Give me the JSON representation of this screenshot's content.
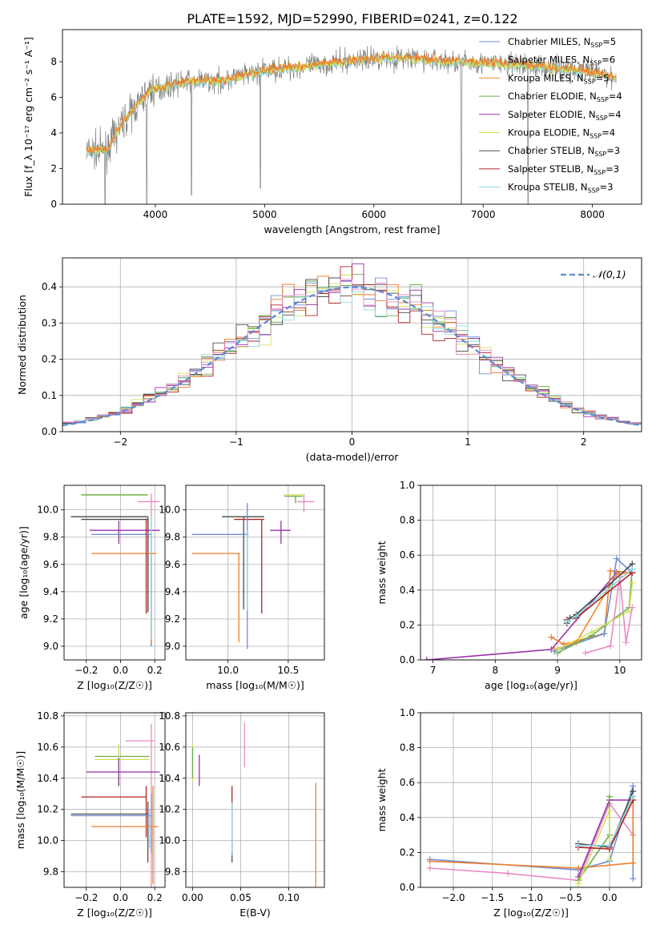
{
  "title": "PLATE=1592, MJD=52990, FIBERID=0241, z=0.122",
  "model_colors": [
    "#6f8fd6",
    "#ee7f2d",
    "#f08b22",
    "#6aad4e",
    "#9b2fa8",
    "#cfe35a",
    "#4a4a4a",
    "#b22222",
    "#8ed6e0"
  ],
  "chart_data": [
    {
      "id": "spectrum",
      "type": "line",
      "xlabel": "wavelength [Angstrom, rest frame]",
      "ylabel": "Flux [f_λ 10⁻¹⁷ erg cm⁻² s⁻¹ A⁻¹]",
      "xlim": [
        3150,
        8450
      ],
      "ylim": [
        0,
        9.8
      ],
      "xticks": [
        4000,
        5000,
        6000,
        7000,
        8000
      ],
      "yticks": [
        0,
        2,
        4,
        6,
        8
      ],
      "legend_position": "right",
      "legend": [
        {
          "label": "Chabrier MILES, N",
          "sub": "SSP",
          "suffix": "=5",
          "color": "#6f8fd6"
        },
        {
          "label": "Salpeter MILES, N",
          "sub": "SSP",
          "suffix": "=6",
          "color": "#ee7f2d"
        },
        {
          "label": "Kroupa MILES, N",
          "sub": "SSP",
          "suffix": "=5",
          "color": "#f08b22"
        },
        {
          "label": "Chabrier ELODIE, N",
          "sub": "SSP",
          "suffix": "=4",
          "color": "#6aad4e"
        },
        {
          "label": "Salpeter ELODIE, N",
          "sub": "SSP",
          "suffix": "=4",
          "color": "#9b2fa8"
        },
        {
          "label": "Kroupa ELODIE, N",
          "sub": "SSP",
          "suffix": "=4",
          "color": "#cfe35a"
        },
        {
          "label": "Chabrier STELIB, N",
          "sub": "SSP",
          "suffix": "=3",
          "color": "#4a4a4a"
        },
        {
          "label": "Salpeter STELIB, N",
          "sub": "SSP",
          "suffix": "=3",
          "color": "#b22222"
        },
        {
          "label": "Kroupa STELIB, N",
          "sub": "SSP",
          "suffix": "=3",
          "color": "#8ed6e0"
        }
      ],
      "continuum": [
        [
          3370,
          3.0
        ],
        [
          3550,
          3.0
        ],
        [
          3700,
          4.6
        ],
        [
          3950,
          6.4
        ],
        [
          4300,
          6.9
        ],
        [
          4600,
          6.9
        ],
        [
          5000,
          7.5
        ],
        [
          5300,
          7.7
        ],
        [
          5600,
          7.9
        ],
        [
          6000,
          8.2
        ],
        [
          6300,
          8.2
        ],
        [
          6700,
          8.0
        ],
        [
          7100,
          7.9
        ],
        [
          7400,
          7.8
        ],
        [
          7700,
          7.6
        ],
        [
          8000,
          7.4
        ],
        [
          8200,
          7.1
        ]
      ],
      "absorption_lines": [
        [
          3540,
          0
        ],
        [
          3920,
          0
        ],
        [
          4330,
          0.5
        ],
        [
          4960,
          0.9
        ],
        [
          6800,
          0
        ],
        [
          7410,
          0
        ]
      ]
    },
    {
      "id": "residual-histogram",
      "type": "bar",
      "xlabel": "(data-model)/error",
      "ylabel": "Normed distribution",
      "xlim": [
        -2.5,
        2.5
      ],
      "ylim": [
        0,
        0.48
      ],
      "xticks": [
        -2,
        -1,
        0,
        1,
        2
      ],
      "yticks": [
        0.0,
        0.1,
        0.2,
        0.3,
        0.4
      ],
      "legend": "𝒩(0,1)",
      "legend_position": "top-right",
      "gaussian": {
        "mu": 0,
        "sigma": 1
      }
    },
    {
      "id": "age-vs-metallicity",
      "type": "scatter",
      "xlabel": "Z [log₁₀(Z/Z☉)]",
      "ylabel": "age  [log₁₀(age/yr)]",
      "xlim": [
        -0.33,
        0.26
      ],
      "ylim": [
        8.9,
        10.18
      ],
      "xticks": [
        -0.2,
        0.0,
        0.2
      ],
      "yticks": [
        9.0,
        9.2,
        9.4,
        9.6,
        9.8,
        10.0
      ]
    },
    {
      "id": "age-vs-mass",
      "type": "scatter",
      "xlabel": "mass [log₁₀(M/M☉)]",
      "ylabel": "",
      "xlim": [
        9.65,
        10.8
      ],
      "ylim": [
        8.9,
        10.18
      ],
      "xticks": [
        10.0,
        10.5
      ],
      "yticks": [
        9.0,
        9.2,
        9.4,
        9.6,
        9.8,
        10.0
      ]
    },
    {
      "id": "mass-weight-vs-age",
      "type": "line",
      "xlabel": "age  [log₁₀(age/yr)]",
      "ylabel": "mass weight",
      "xlim": [
        6.8,
        10.35
      ],
      "ylim": [
        0,
        1.0
      ],
      "xticks": [
        7,
        8,
        9,
        10
      ],
      "yticks": [
        0.0,
        0.2,
        0.4,
        0.6,
        0.8,
        1.0
      ]
    },
    {
      "id": "mass-vs-metallicity",
      "type": "scatter",
      "xlabel": "Z [log₁₀(Z/Z☉)]",
      "ylabel": "mass [log₁₀(M/M☉)]",
      "xlim": [
        -0.33,
        0.26
      ],
      "ylim": [
        9.7,
        10.82
      ],
      "xticks": [
        -0.2,
        0.0,
        0.2
      ],
      "yticks": [
        9.8,
        10.0,
        10.2,
        10.4,
        10.6,
        10.8
      ]
    },
    {
      "id": "mass-vs-ebv",
      "type": "scatter",
      "xlabel": "E(B-V)",
      "ylabel": "",
      "xlim": [
        -0.007,
        0.137
      ],
      "ylim": [
        9.7,
        10.82
      ],
      "xticks": [
        0.0,
        0.05,
        0.1
      ],
      "yticks": [
        9.8,
        10.0,
        10.2,
        10.4,
        10.6,
        10.8
      ]
    },
    {
      "id": "mass-weight-vs-metallicity",
      "type": "line",
      "xlabel": "Z [log₁₀(Z/Z☉)]",
      "ylabel": "mass weight",
      "xlim": [
        -2.42,
        0.41
      ],
      "ylim": [
        0,
        1.0
      ],
      "xticks": [
        -2.0,
        -1.5,
        -1.0,
        -0.5,
        0.0
      ],
      "yticks": [
        0.0,
        0.2,
        0.4,
        0.6,
        0.8,
        1.0
      ]
    }
  ],
  "crosses_age_z": [
    {
      "color": "#cfe35a",
      "x": 0.16,
      "y": 10.11,
      "xe": [
        -0.23,
        0.16
      ],
      "ye": [
        10.11,
        10.11
      ]
    },
    {
      "color": "#6aad4e",
      "x": 0.16,
      "y": 10.11,
      "xe": [
        -0.23,
        0.16
      ],
      "ye": [
        10.11,
        10.11
      ]
    },
    {
      "color": "#e88ac6",
      "x": 0.18,
      "y": 10.06,
      "xe": [
        0.1,
        0.23
      ],
      "ye": [
        9.0,
        10.12
      ]
    },
    {
      "color": "#4a4a4a",
      "x": 0.16,
      "y": 9.95,
      "xe": [
        -0.29,
        0.16
      ],
      "ye": [
        9.25,
        9.95
      ]
    },
    {
      "color": "#4a4a4a",
      "x": 0.16,
      "y": 9.93,
      "xe": [
        -0.23,
        0.16
      ],
      "ye": [
        9.25,
        9.93
      ]
    },
    {
      "color": "#9b2fa8",
      "x": -0.01,
      "y": 9.85,
      "xe": [
        -0.18,
        0.23
      ],
      "ye": [
        9.75,
        9.92
      ]
    },
    {
      "color": "#6f8fd6",
      "x": 0.18,
      "y": 9.82,
      "xe": [
        -0.17,
        0.18
      ],
      "ye": [
        9.0,
        9.82
      ]
    },
    {
      "color": "#ee7f2d",
      "x": 0.18,
      "y": 9.68,
      "xe": [
        -0.17,
        0.21
      ],
      "ye": [
        9.02,
        9.68
      ]
    },
    {
      "color": "#b22222",
      "x": 0.15,
      "y": 9.93,
      "xe": [
        0.15,
        0.15
      ],
      "ye": [
        9.24,
        9.93
      ]
    },
    {
      "color": "#8ed6e0",
      "x": 0.18,
      "y": 9.96,
      "xe": [
        0.18,
        0.18
      ],
      "ye": [
        9.05,
        9.96
      ]
    }
  ],
  "crosses_age_mass": [
    {
      "color": "#cfe35a",
      "x": 10.56,
      "y": 10.11,
      "xe": [
        10.46,
        10.62
      ],
      "ye": [
        10.05,
        10.11
      ]
    },
    {
      "color": "#6aad4e",
      "x": 10.56,
      "y": 10.1,
      "xe": [
        10.47,
        10.62
      ],
      "ye": [
        10.05,
        10.1
      ]
    },
    {
      "color": "#e88ac6",
      "x": 10.63,
      "y": 10.06,
      "xe": [
        10.57,
        10.72
      ],
      "ye": [
        9.98,
        10.12
      ]
    },
    {
      "color": "#4a4a4a",
      "x": 10.13,
      "y": 9.95,
      "xe": [
        9.95,
        10.3
      ],
      "ye": [
        9.27,
        9.95
      ]
    },
    {
      "color": "#b22222",
      "x": 10.28,
      "y": 9.93,
      "xe": [
        10.05,
        10.3
      ],
      "ye": [
        9.24,
        9.93
      ]
    },
    {
      "color": "#9b2fa8",
      "x": 10.44,
      "y": 9.85,
      "xe": [
        10.35,
        10.52
      ],
      "ye": [
        9.75,
        9.92
      ]
    },
    {
      "color": "#6f8fd6",
      "x": 10.16,
      "y": 9.82,
      "xe": [
        9.7,
        10.17
      ],
      "ye": [
        8.98,
        10.05
      ]
    },
    {
      "color": "#ee7f2d",
      "x": 10.09,
      "y": 9.68,
      "xe": [
        9.7,
        10.1
      ],
      "ye": [
        9.03,
        9.68
      ]
    },
    {
      "color": "#8ed6e0",
      "x": 10.16,
      "y": 9.85,
      "xe": [
        10.16,
        10.16
      ],
      "ye": [
        9.26,
        9.85
      ]
    }
  ],
  "crosses_mass_z": [
    {
      "color": "#e88ac6",
      "x": 0.18,
      "y": 10.64,
      "xe": [
        0.03,
        0.2
      ],
      "ye": [
        9.7,
        10.75
      ]
    },
    {
      "color": "#6aad4e",
      "x": -0.01,
      "y": 10.54,
      "xe": [
        -0.15,
        0.17
      ],
      "ye": [
        10.35,
        10.6
      ]
    },
    {
      "color": "#cfe35a",
      "x": -0.01,
      "y": 10.52,
      "xe": [
        -0.15,
        0.17
      ],
      "ye": [
        10.35,
        10.62
      ]
    },
    {
      "color": "#9b2fa8",
      "x": -0.01,
      "y": 10.44,
      "xe": [
        -0.2,
        0.23
      ],
      "ye": [
        10.35,
        10.53
      ]
    },
    {
      "color": "#b22222",
      "x": 0.15,
      "y": 10.28,
      "xe": [
        -0.23,
        0.15
      ],
      "ye": [
        10.02,
        10.35
      ]
    },
    {
      "color": "#4a4a4a",
      "x": 0.16,
      "y": 10.17,
      "xe": [
        -0.29,
        0.16
      ],
      "ye": [
        9.86,
        10.25
      ]
    },
    {
      "color": "#6f8fd6",
      "x": 0.18,
      "y": 10.16,
      "xe": [
        -0.29,
        0.18
      ],
      "ye": [
        9.92,
        10.3
      ]
    },
    {
      "color": "#ee7f2d",
      "x": 0.19,
      "y": 10.09,
      "xe": [
        -0.17,
        0.22
      ],
      "ye": [
        9.72,
        10.35
      ]
    },
    {
      "color": "#8ed6e0",
      "x": 0.17,
      "y": 10.16,
      "xe": [
        0.17,
        0.17
      ],
      "ye": [
        9.95,
        10.2
      ]
    }
  ],
  "crosses_mass_ebv": [
    {
      "color": "#cfe35a",
      "x": 0.0,
      "y": 10.52,
      "ye": [
        10.38,
        10.62
      ]
    },
    {
      "color": "#6aad4e",
      "x": 0.0,
      "y": 10.52,
      "ye": [
        10.4,
        10.6
      ]
    },
    {
      "color": "#9b2fa8",
      "x": 0.007,
      "y": 10.44,
      "ye": [
        10.35,
        10.55
      ]
    },
    {
      "color": "#e88ac6",
      "x": 0.054,
      "y": 10.64,
      "ye": [
        10.47,
        10.76
      ]
    },
    {
      "color": "#b22222",
      "x": 0.041,
      "y": 10.28,
      "ye": [
        10.2,
        10.35
      ]
    },
    {
      "color": "#4a4a4a",
      "x": 0.041,
      "y": 10.06,
      "ye": [
        9.86,
        10.2
      ]
    },
    {
      "color": "#6f8fd6",
      "x": 0.041,
      "y": 10.16,
      "ye": [
        9.9,
        10.25
      ]
    },
    {
      "color": "#8ed6e0",
      "x": 0.041,
      "y": 10.16,
      "ye": [
        9.92,
        10.24
      ]
    },
    {
      "color": "#ee7f2d",
      "x": 0.128,
      "y": 10.09,
      "ye": [
        9.7,
        10.37
      ]
    }
  ],
  "mw_age_lines": [
    {
      "color": "#9b2fa8",
      "pts": [
        [
          6.9,
          0.0
        ],
        [
          8.9,
          0.06
        ],
        [
          9.95,
          0.5
        ]
      ]
    },
    {
      "color": "#ee7f2d",
      "pts": [
        [
          8.9,
          0.13
        ],
        [
          9.1,
          0.09
        ],
        [
          9.75,
          0.15
        ],
        [
          9.85,
          0.51
        ],
        [
          10.2,
          0.5
        ]
      ]
    },
    {
      "color": "#f08b22",
      "pts": [
        [
          8.95,
          0.06
        ],
        [
          9.3,
          0.1
        ],
        [
          9.95,
          0.49
        ],
        [
          10.2,
          0.5
        ]
      ]
    },
    {
      "color": "#6f8fd6",
      "pts": [
        [
          8.95,
          0.05
        ],
        [
          9.75,
          0.15
        ],
        [
          9.95,
          0.58
        ],
        [
          10.2,
          0.5
        ]
      ]
    },
    {
      "color": "#6aad4e",
      "pts": [
        [
          9.0,
          0.04
        ],
        [
          9.55,
          0.14
        ],
        [
          10.15,
          0.3
        ],
        [
          10.2,
          0.52
        ]
      ]
    },
    {
      "color": "#cfe35a",
      "pts": [
        [
          9.0,
          0.06
        ],
        [
          9.55,
          0.16
        ],
        [
          10.15,
          0.28
        ],
        [
          10.2,
          0.44
        ]
      ]
    },
    {
      "color": "#e88ac6",
      "pts": [
        [
          9.45,
          0.04
        ],
        [
          9.85,
          0.08
        ],
        [
          10.0,
          0.48
        ],
        [
          10.1,
          0.1
        ],
        [
          10.2,
          0.3
        ]
      ]
    },
    {
      "color": "#4a4a4a",
      "pts": [
        [
          9.15,
          0.21
        ],
        [
          9.2,
          0.24
        ],
        [
          9.3,
          0.26
        ],
        [
          10.2,
          0.55
        ]
      ]
    },
    {
      "color": "#b22222",
      "pts": [
        [
          9.15,
          0.23
        ],
        [
          9.3,
          0.24
        ],
        [
          10.2,
          0.5
        ]
      ]
    },
    {
      "color": "#8ed6e0",
      "pts": [
        [
          9.15,
          0.22
        ],
        [
          9.3,
          0.25
        ],
        [
          10.2,
          0.52
        ]
      ]
    }
  ],
  "mw_z_lines": [
    {
      "color": "#e88ac6",
      "pts": [
        [
          -2.3,
          0.11
        ],
        [
          -1.3,
          0.08
        ],
        [
          -0.4,
          0.04
        ],
        [
          0.0,
          0.48
        ],
        [
          0.3,
          0.3
        ]
      ]
    },
    {
      "color": "#6f8fd6",
      "pts": [
        [
          -2.3,
          0.16
        ],
        [
          -0.4,
          0.1
        ],
        [
          0.0,
          0.15
        ],
        [
          0.3,
          0.58
        ],
        [
          0.3,
          0.05
        ]
      ]
    },
    {
      "color": "#ee7f2d",
      "pts": [
        [
          -2.3,
          0.15
        ],
        [
          -0.4,
          0.11
        ],
        [
          0.3,
          0.14
        ],
        [
          0.3,
          0.52
        ]
      ]
    },
    {
      "color": "#9b2fa8",
      "pts": [
        [
          -0.4,
          0.06
        ],
        [
          0.0,
          0.5
        ],
        [
          0.3,
          0.5
        ]
      ]
    },
    {
      "color": "#6aad4e",
      "pts": [
        [
          -0.4,
          0.04
        ],
        [
          0.0,
          0.3
        ],
        [
          0.0,
          0.52
        ]
      ]
    },
    {
      "color": "#cfe35a",
      "pts": [
        [
          -0.4,
          0.02
        ],
        [
          0.0,
          0.44
        ],
        [
          0.0,
          0.16
        ]
      ]
    },
    {
      "color": "#4a4a4a",
      "pts": [
        [
          -0.4,
          0.25
        ],
        [
          0.0,
          0.23
        ],
        [
          0.3,
          0.55
        ]
      ]
    },
    {
      "color": "#b22222",
      "pts": [
        [
          -0.4,
          0.23
        ],
        [
          0.0,
          0.22
        ],
        [
          0.3,
          0.5
        ]
      ]
    },
    {
      "color": "#8ed6e0",
      "pts": [
        [
          -0.4,
          0.24
        ],
        [
          0.0,
          0.24
        ],
        [
          0.3,
          0.52
        ]
      ]
    }
  ]
}
